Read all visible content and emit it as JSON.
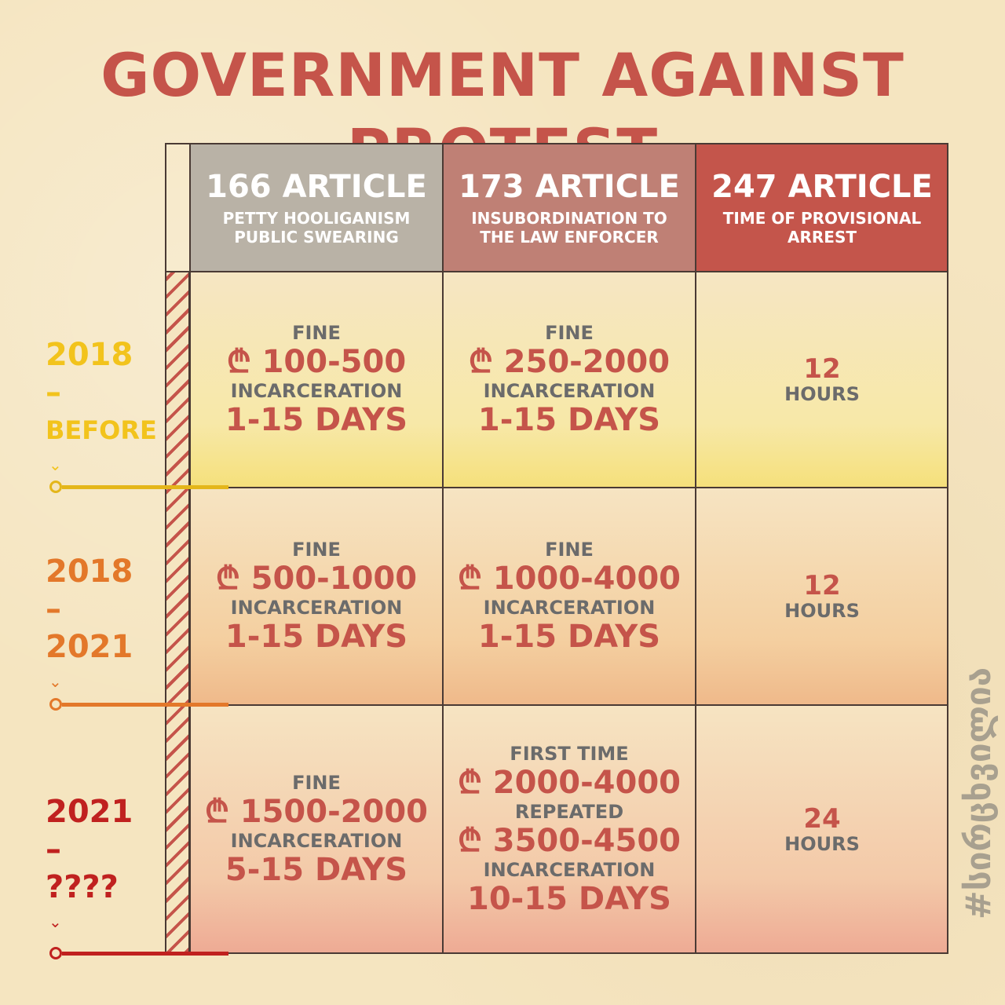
{
  "title": "GOVERNMENT AGAINST PROTEST",
  "columns": [
    {
      "article": "166 ARTICLE",
      "subtitle_1": "PETTY HOOLIGANISM",
      "subtitle_2": "PUBLIC SWEARING",
      "color": "#b9b2a6"
    },
    {
      "article": "173 ARTICLE",
      "subtitle_1": "INSUBORDINATION TO",
      "subtitle_2": "THE LAW ENFORCER",
      "color": "#bf8075"
    },
    {
      "article": "247 ARTICLE",
      "subtitle_1": "TIME OF PROVISIONAL",
      "subtitle_2": "ARREST",
      "color": "#c4554b"
    }
  ],
  "periods": [
    {
      "start": "2018",
      "dash": "–",
      "end": "BEFORE",
      "color": "#f2c31c",
      "art166": {
        "fine_label": "FINE",
        "fine": "₾ 100-500",
        "inc_label": "INCARCERATION",
        "inc": "1-15 DAYS"
      },
      "art173": {
        "fine_label": "FINE",
        "fine": "₾ 250-2000",
        "inc_label": "INCARCERATION",
        "inc": "1-15 DAYS"
      },
      "art247": {
        "hours": "12",
        "hours_label": "HOURS"
      }
    },
    {
      "start": "2018",
      "dash": "–",
      "end": "2021",
      "color": "#e3782a",
      "art166": {
        "fine_label": "FINE",
        "fine": "₾ 500-1000",
        "inc_label": "INCARCERATION",
        "inc": "1-15 DAYS"
      },
      "art173": {
        "fine_label": "FINE",
        "fine": "₾ 1000-4000",
        "inc_label": "INCARCERATION",
        "inc": "1-15 DAYS"
      },
      "art247": {
        "hours": "12",
        "hours_label": "HOURS"
      }
    },
    {
      "start": "2021",
      "dash": "–",
      "end": "????",
      "color": "#c0211f",
      "art166": {
        "fine_label": "FINE",
        "fine": "₾ 1500-2000",
        "inc_label": "INCARCERATION",
        "inc": "5-15 DAYS"
      },
      "art173": {
        "first_label": "FIRST TIME",
        "first": "₾ 2000-4000",
        "repeat_label": "REPEATED",
        "repeat": "₾ 3500-4500",
        "inc_label": "INCARCERATION",
        "inc": "10-15 DAYS"
      },
      "art247": {
        "hours": "24",
        "hours_label": "HOURS"
      }
    }
  ],
  "tick_glyph": "⌄",
  "hashtag": "#სირცხვილია"
}
